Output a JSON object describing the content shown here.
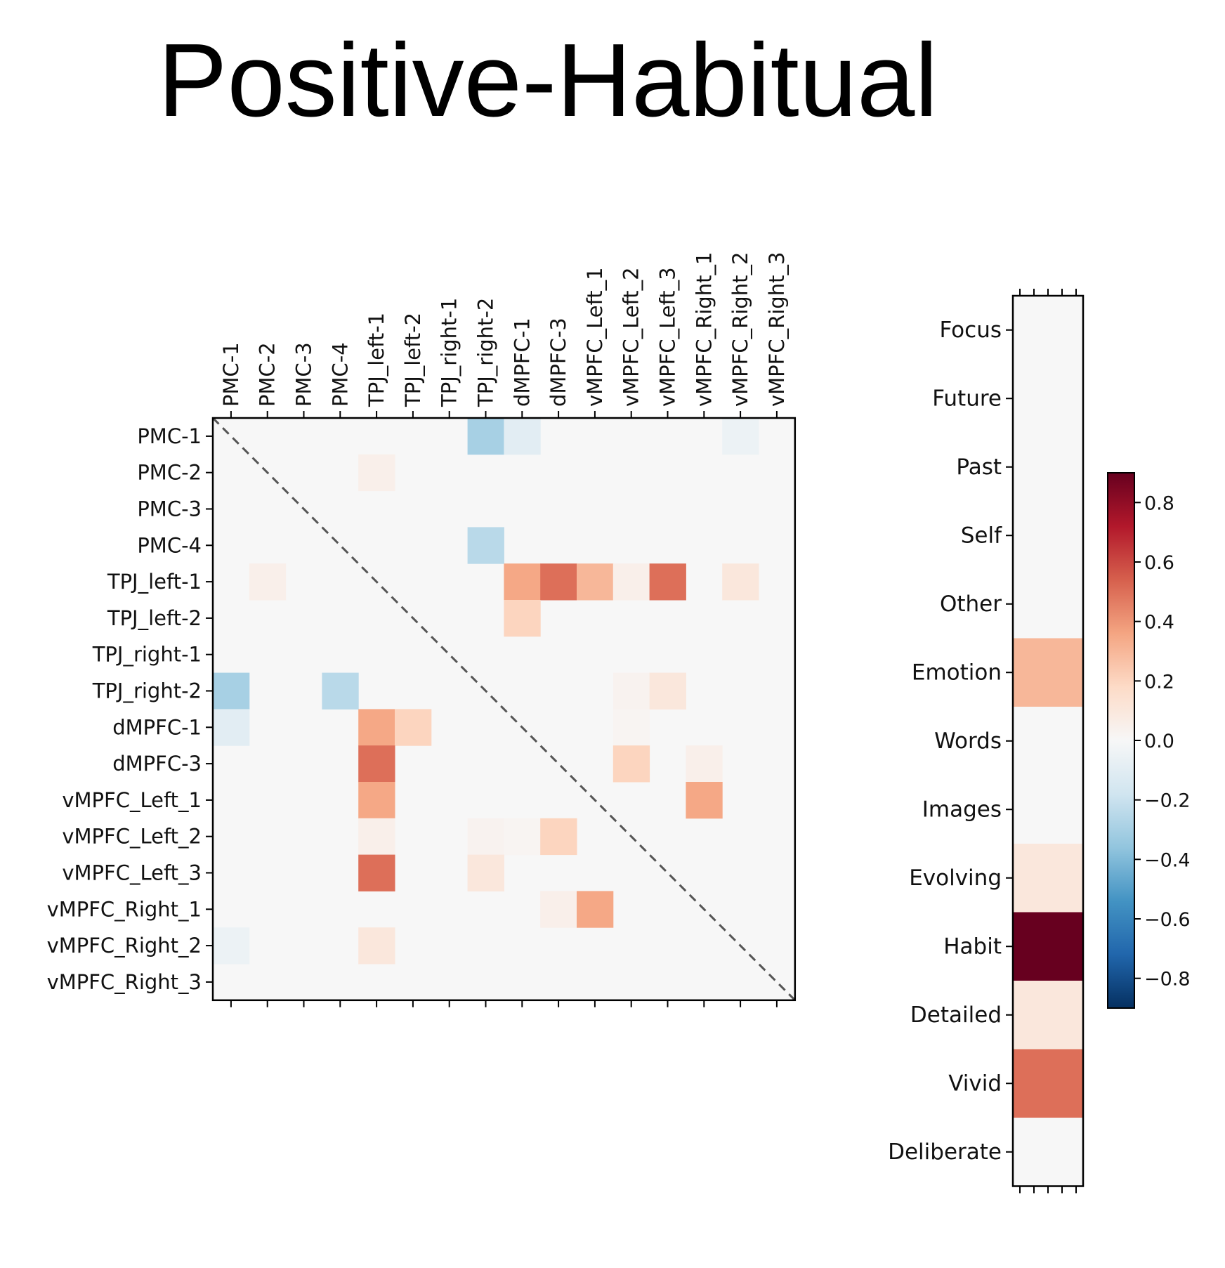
{
  "chart_data": [
    {
      "type": "heatmap",
      "title": "Positive-Habitual",
      "rows": [
        "PMC-1",
        "PMC-2",
        "PMC-3",
        "PMC-4",
        "TPJ_left-1",
        "TPJ_left-2",
        "TPJ_right-1",
        "TPJ_right-2",
        "dMPFC-1",
        "dMPFC-3",
        "vMPFC_Left_1",
        "vMPFC_Left_2",
        "vMPFC_Left_3",
        "vMPFC_Right_1",
        "vMPFC_Right_2",
        "vMPFC_Right_3"
      ],
      "columns": [
        "PMC-1",
        "PMC-2",
        "PMC-3",
        "PMC-4",
        "TPJ_left-1",
        "TPJ_left-2",
        "TPJ_right-1",
        "TPJ_right-2",
        "dMPFC-1",
        "dMPFC-3",
        "vMPFC_Left_1",
        "vMPFC_Left_2",
        "vMPFC_Left_3",
        "vMPFC_Right_1",
        "vMPFC_Right_2",
        "vMPFC_Right_3"
      ],
      "values": [
        [
          0,
          0,
          0,
          0,
          0,
          0,
          0,
          -0.3,
          -0.1,
          0,
          0,
          0,
          0,
          0,
          -0.05,
          0
        ],
        [
          0,
          0,
          0,
          0,
          0.05,
          0,
          0,
          0,
          0,
          0,
          0,
          0,
          0,
          0,
          0,
          0
        ],
        [
          0,
          0,
          0,
          0,
          0,
          0,
          0,
          0,
          0,
          0,
          0,
          0,
          0,
          0,
          0,
          0
        ],
        [
          0,
          0,
          0,
          0,
          0,
          0,
          0,
          -0.25,
          0,
          0,
          0,
          0,
          0,
          0,
          0,
          0
        ],
        [
          0,
          0.05,
          0,
          0,
          0,
          0,
          0,
          0,
          0.35,
          0.5,
          0.3,
          0.05,
          0.5,
          0,
          0.1,
          0
        ],
        [
          0,
          0,
          0,
          0,
          0,
          0,
          0,
          0,
          0.2,
          0,
          0,
          0,
          0,
          0,
          0,
          0
        ],
        [
          0,
          0,
          0,
          0,
          0,
          0,
          0,
          0,
          0,
          0,
          0,
          0,
          0,
          0,
          0,
          0
        ],
        [
          -0.3,
          0,
          0,
          -0.25,
          0,
          0,
          0,
          0,
          0,
          0,
          0,
          0.03,
          0.1,
          0,
          0,
          0
        ],
        [
          -0.1,
          0,
          0,
          0,
          0.35,
          0.2,
          0,
          0,
          0,
          0,
          0,
          0.02,
          0,
          0,
          0,
          0
        ],
        [
          0,
          0,
          0,
          0,
          0.5,
          0,
          0,
          0,
          0,
          0,
          0,
          0.2,
          0,
          0.05,
          0,
          0
        ],
        [
          0,
          0,
          0,
          0,
          0.35,
          0,
          0,
          0,
          0,
          0,
          0,
          0,
          0,
          0.35,
          0,
          0
        ],
        [
          0,
          0,
          0,
          0,
          0.05,
          0,
          0,
          0.03,
          0.02,
          0.2,
          0,
          0,
          0,
          0,
          0,
          0
        ],
        [
          0,
          0,
          0,
          0,
          0.5,
          0,
          0,
          0.1,
          0,
          0,
          0,
          0,
          0,
          0,
          0,
          0
        ],
        [
          0,
          0,
          0,
          0,
          0,
          0,
          0,
          0,
          0,
          0.05,
          0.35,
          0,
          0,
          0,
          0,
          0
        ],
        [
          -0.05,
          0,
          0,
          0,
          0.1,
          0,
          0,
          0,
          0,
          0,
          0,
          0,
          0,
          0,
          0,
          0
        ],
        [
          0,
          0,
          0,
          0,
          0,
          0,
          0,
          0,
          0,
          0,
          0,
          0,
          0,
          0,
          0,
          0
        ]
      ],
      "diagonal": "dashed",
      "vrange": [
        -0.9,
        0.9
      ],
      "colormap": "RdBu_r"
    },
    {
      "type": "heatmap",
      "rows": [
        "Focus",
        "Future",
        "Past",
        "Self",
        "Other",
        "Emotion",
        "Words",
        "Images",
        "Evolving",
        "Habit",
        "Detailed",
        "Vivid",
        "Deliberate"
      ],
      "values": [
        0,
        0,
        0,
        0,
        0,
        0.3,
        0,
        0,
        0.1,
        0.9,
        0.1,
        0.5,
        0
      ],
      "vrange": [
        -0.9,
        0.9
      ],
      "colormap": "RdBu_r"
    }
  ],
  "colorbar": {
    "ticks": [
      0.8,
      0.6,
      0.4,
      0.2,
      0.0,
      -0.2,
      -0.4,
      -0.6,
      -0.8
    ],
    "tick_labels": [
      "0.8",
      "0.6",
      "0.4",
      "0.2",
      "0.0",
      "−0.2",
      "−0.4",
      "−0.6",
      "−0.8"
    ]
  },
  "colors": {
    "stops": [
      "#053061",
      "#2166ac",
      "#4393c3",
      "#92c5de",
      "#d1e5f0",
      "#f7f7f7",
      "#fddbc7",
      "#f4a582",
      "#d6604d",
      "#b2182b",
      "#67001f"
    ]
  }
}
